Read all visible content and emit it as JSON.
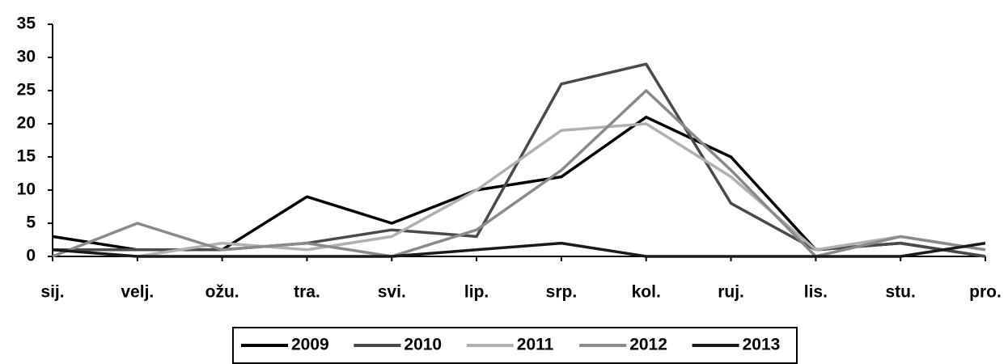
{
  "chart_data": {
    "type": "line",
    "categories": [
      "sij.",
      "velj.",
      "ožu.",
      "tra.",
      "svi.",
      "lip.",
      "srp.",
      "kol.",
      "ruj.",
      "lis.",
      "stu.",
      "pro."
    ],
    "series": [
      {
        "name": "2009",
        "color": "#000000",
        "values": [
          3,
          1,
          1,
          9,
          5,
          10,
          12,
          21,
          15,
          1,
          2,
          0
        ]
      },
      {
        "name": "2010",
        "color": "#4a4a4a",
        "values": [
          1,
          1,
          1,
          2,
          4,
          3,
          26,
          29,
          8,
          1,
          2,
          0
        ]
      },
      {
        "name": "2011",
        "color": "#b0b0b0",
        "values": [
          1,
          0,
          2,
          1,
          3,
          10,
          19,
          20,
          12,
          1,
          3,
          1
        ]
      },
      {
        "name": "2012",
        "color": "#8a8a8a",
        "values": [
          0,
          5,
          1,
          2,
          0,
          4,
          13,
          25,
          13,
          0,
          3,
          1
        ]
      },
      {
        "name": "2013",
        "color": "#1a1a1a",
        "values": [
          1,
          0,
          0,
          0,
          0,
          1,
          2,
          0,
          0,
          0,
          0,
          2
        ]
      }
    ],
    "ylim": [
      0,
      35
    ],
    "yticks": [
      0,
      5,
      10,
      15,
      20,
      25,
      30,
      35
    ]
  }
}
